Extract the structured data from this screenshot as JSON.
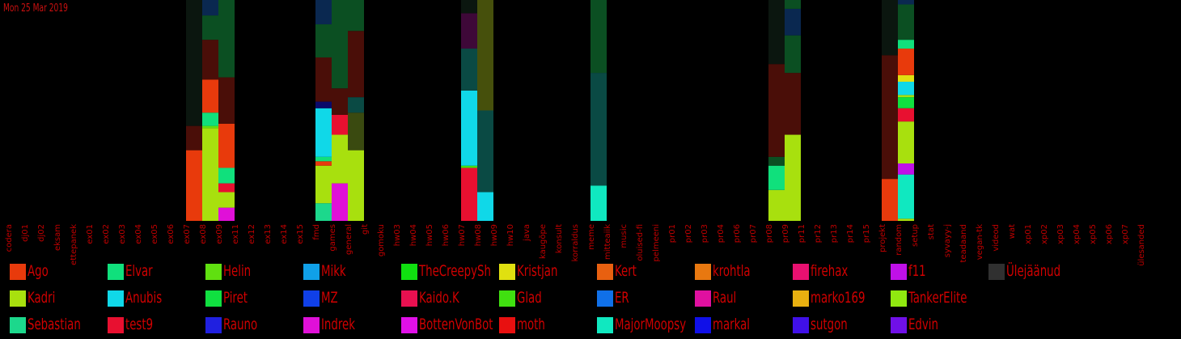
{
  "date_label": "Mon 25 Mar 2019",
  "colors": {
    "Ago": "#e83a0c",
    "Kadri": "#a8e00e",
    "Sebastian": "#1cd88c",
    "Elvar": "#10e07c",
    "Anubis": "#10d8e8",
    "test9": "#e81030",
    "Helin": "#60e010",
    "Piret": "#10e040",
    "Rauno": "#2020e0",
    "Mikk": "#10a0e8",
    "MZ": "#1040e8",
    "Indrek": "#e010d8",
    "TheCreepySh": "#10e010",
    "Kaido.K": "#e81050",
    "BottenVonBot": "#e010e8",
    "Kristjan": "#e0e010",
    "Glad": "#40e010",
    "moth": "#e81010",
    "Kert": "#e86010",
    "ER": "#1070e8",
    "MajorMoopsy": "#10e8c0",
    "krohtla": "#e87810",
    "Raul": "#e010a0",
    "markal": "#1010e8",
    "firehax": "#e81070",
    "marko169": "#e8b010",
    "sutgon": "#4010e8",
    "f11": "#c010e8",
    "TankerElite": "#90e810",
    "Edvin": "#7010e8",
    "Ülejäänud": "#303030",
    "dark_green": "#0b4f22",
    "dark_teal": "#0a4a44",
    "dark_red": "#4a0e08",
    "near_black": "#0b160f",
    "olive": "#46500c",
    "dark_purple": "#3e0838",
    "dark_blue": "#0a2850",
    "navy": "#0a0a6a",
    "dark_red2": "#5a1008",
    "dark_olive": "#3a4a10"
  },
  "chart_data": {
    "type": "bar",
    "stacked": true,
    "title": "",
    "xlabel": "",
    "ylabel": "",
    "ylim": [
      0,
      100
    ],
    "categories": [
      "codera",
      "dj01",
      "dj02",
      "eksam",
      "ettepanek",
      "ex01",
      "ex02",
      "ex03",
      "ex04",
      "ex05",
      "ex06",
      "ex07",
      "ex08",
      "ex09",
      "ex11",
      "ex12",
      "ex13",
      "ex14",
      "ex15",
      "fmd",
      "games",
      "general",
      "git",
      "gomoku",
      "hw03",
      "hw04",
      "hw05",
      "hw06",
      "hw07",
      "hw08",
      "hw09",
      "hw10",
      "java",
      "kaugõpe",
      "konsult",
      "korraldus",
      "meme",
      "mitteaiik",
      "music",
      "oluised-fi",
      "pelmeeni",
      "pr01",
      "pr02",
      "pr03",
      "pr04",
      "pr06",
      "pr07",
      "pr08",
      "pr09",
      "pr11",
      "pr12",
      "pr13",
      "pr14",
      "pr15",
      "projekt",
      "random",
      "setup",
      "stat",
      "syvayy-j",
      "teadaand",
      "vegan-tk",
      "videod",
      "wat",
      "xp01",
      "xp02",
      "xp03",
      "xp04",
      "xp05",
      "xp06",
      "xp07",
      "ülesanded"
    ],
    "bars": [
      {
        "category": "ex07",
        "segments": [
          {
            "c": "Ago",
            "v": 32
          },
          {
            "c": "dark_red",
            "v": 11
          },
          {
            "c": "near_black",
            "v": 57
          }
        ]
      },
      {
        "category": "ex08",
        "segments": [
          {
            "c": "Kadri",
            "v": 42
          },
          {
            "c": "Helin",
            "v": 1
          },
          {
            "c": "Elvar",
            "v": 6
          },
          {
            "c": "Ago",
            "v": 15
          },
          {
            "c": "dark_red",
            "v": 18
          },
          {
            "c": "dark_green",
            "v": 11
          },
          {
            "c": "dark_blue",
            "v": 8
          }
        ]
      },
      {
        "category": "ex09",
        "segments": [
          {
            "c": "Indrek",
            "v": 6
          },
          {
            "c": "Kadri",
            "v": 7
          },
          {
            "c": "test9",
            "v": 4
          },
          {
            "c": "Elvar",
            "v": 7
          },
          {
            "c": "Ago",
            "v": 20
          },
          {
            "c": "dark_red",
            "v": 21
          },
          {
            "c": "dark_green",
            "v": 35
          }
        ]
      },
      {
        "category": "fmd",
        "segments": [
          {
            "c": "Sebastian",
            "v": 8
          },
          {
            "c": "Kadri",
            "v": 17
          },
          {
            "c": "Ago",
            "v": 2
          },
          {
            "c": "Elvar",
            "v": 2
          },
          {
            "c": "Anubis",
            "v": 22
          },
          {
            "c": "navy",
            "v": 3
          },
          {
            "c": "dark_red",
            "v": 20
          },
          {
            "c": "dark_green",
            "v": 15
          },
          {
            "c": "dark_blue",
            "v": 11
          }
        ]
      },
      {
        "category": "games",
        "segments": [
          {
            "c": "Indrek",
            "v": 17
          },
          {
            "c": "Kadri",
            "v": 22
          },
          {
            "c": "test9",
            "v": 9
          },
          {
            "c": "dark_red",
            "v": 12
          },
          {
            "c": "dark_green",
            "v": 40
          }
        ]
      },
      {
        "category": "general",
        "segments": [
          {
            "c": "Kadri",
            "v": 32
          },
          {
            "c": "dark_olive",
            "v": 17
          },
          {
            "c": "dark_teal",
            "v": 7
          },
          {
            "c": "dark_red",
            "v": 30
          },
          {
            "c": "dark_green",
            "v": 14
          }
        ]
      },
      {
        "category": "hw07",
        "segments": [
          {
            "c": "test9",
            "v": 24
          },
          {
            "c": "Glad",
            "v": 1
          },
          {
            "c": "Anubis",
            "v": 34
          },
          {
            "c": "dark_teal",
            "v": 19
          },
          {
            "c": "dark_purple",
            "v": 16
          },
          {
            "c": "near_black",
            "v": 6
          }
        ]
      },
      {
        "category": "hw08",
        "segments": [
          {
            "c": "Anubis",
            "v": 13
          },
          {
            "c": "dark_teal",
            "v": 37
          },
          {
            "c": "olive",
            "v": 50
          }
        ]
      },
      {
        "category": "meme",
        "segments": [
          {
            "c": "MajorMoopsy",
            "v": 16
          },
          {
            "c": "dark_teal",
            "v": 51
          },
          {
            "c": "dark_green",
            "v": 33
          }
        ]
      },
      {
        "category": "pr08",
        "segments": [
          {
            "c": "Kadri",
            "v": 14
          },
          {
            "c": "Elvar",
            "v": 11
          },
          {
            "c": "dark_green",
            "v": 4
          },
          {
            "c": "dark_red",
            "v": 42
          },
          {
            "c": "near_black",
            "v": 29
          }
        ]
      },
      {
        "category": "pr09",
        "segments": [
          {
            "c": "Kadri",
            "v": 39
          },
          {
            "c": "dark_red",
            "v": 28
          },
          {
            "c": "dark_green",
            "v": 17
          },
          {
            "c": "dark_blue",
            "v": 12
          },
          {
            "c": "dark_green",
            "v": 4
          }
        ]
      },
      {
        "category": "projekt",
        "segments": [
          {
            "c": "Ago",
            "v": 19
          },
          {
            "c": "dark_red",
            "v": 56
          },
          {
            "c": "near_black",
            "v": 25
          }
        ]
      },
      {
        "category": "random",
        "segments": [
          {
            "c": "Kadri",
            "v": 1
          },
          {
            "c": "MajorMoopsy",
            "v": 20
          },
          {
            "c": "f11",
            "v": 5
          },
          {
            "c": "Kadri",
            "v": 19
          },
          {
            "c": "test9",
            "v": 6
          },
          {
            "c": "Piret",
            "v": 5
          },
          {
            "c": "Kadri",
            "v": 1
          },
          {
            "c": "Anubis",
            "v": 6
          },
          {
            "c": "Kristjan",
            "v": 3
          },
          {
            "c": "Ago",
            "v": 12
          },
          {
            "c": "Elvar",
            "v": 4
          },
          {
            "c": "dark_green",
            "v": 16
          },
          {
            "c": "dark_blue",
            "v": 2
          }
        ]
      }
    ],
    "legend_placement": "bottom",
    "legend": [
      [
        "Ago",
        "Kadri",
        "Sebastian"
      ],
      [
        "Elvar",
        "Anubis",
        "test9"
      ],
      [
        "Helin",
        "Piret",
        "Rauno"
      ],
      [
        "Mikk",
        "MZ",
        "Indrek"
      ],
      [
        "TheCreepySh",
        "Kaido.K",
        "BottenVonBot"
      ],
      [
        "Kristjan",
        "Glad",
        "moth"
      ],
      [
        "Kert",
        "ER",
        "MajorMoopsy"
      ],
      [
        "krohtla",
        "Raul",
        "markal"
      ],
      [
        "firehax",
        "marko169",
        "sutgon"
      ],
      [
        "f11",
        "TankerElite",
        "Edvin"
      ],
      [
        "Ülejäänud"
      ]
    ]
  }
}
